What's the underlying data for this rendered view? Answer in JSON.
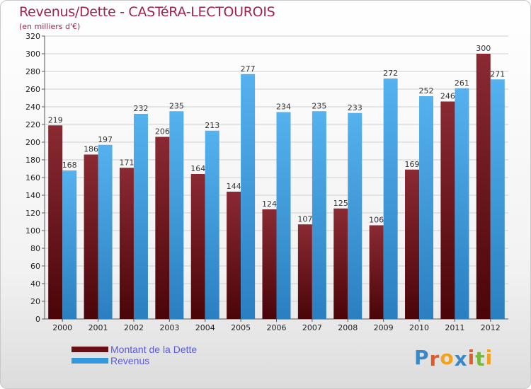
{
  "header": {
    "title": "Revenus/Dette - CASTéRA-LECTOUROIS",
    "subtitle": "(en milliers d'€)"
  },
  "legend": {
    "items": [
      {
        "label": "Montant de la Dette",
        "color": "#6b0f17"
      },
      {
        "label": "Revenus",
        "color": "#3399dd"
      }
    ]
  },
  "logo": {
    "text": "Proxiti",
    "letter_colors": [
      "#3a87c9",
      "#e05a2a",
      "#f2a21c",
      "#3a87c9",
      "#e05a2a",
      "#7ab840",
      "#f2a21c"
    ]
  },
  "chart_data": {
    "type": "bar",
    "title": "Revenus/Dette - CASTéRA-LECTOUROIS",
    "subtitle": "(en milliers d'€)",
    "categories": [
      "2000",
      "2001",
      "2002",
      "2003",
      "2004",
      "2005",
      "2006",
      "2007",
      "2008",
      "2009",
      "2010",
      "2011",
      "2012"
    ],
    "series": [
      {
        "name": "Montant de la Dette",
        "color": "#6b0f17",
        "values": [
          219,
          186,
          171,
          206,
          164,
          144,
          124,
          107,
          125,
          106,
          169,
          246,
          300
        ]
      },
      {
        "name": "Revenus",
        "color": "#3399dd",
        "values": [
          168,
          197,
          232,
          235,
          213,
          277,
          234,
          235,
          233,
          272,
          252,
          261,
          271
        ]
      }
    ],
    "ylim": [
      0,
      320
    ],
    "ytick_step": 20,
    "grid": true,
    "legend": "bottom-left"
  }
}
